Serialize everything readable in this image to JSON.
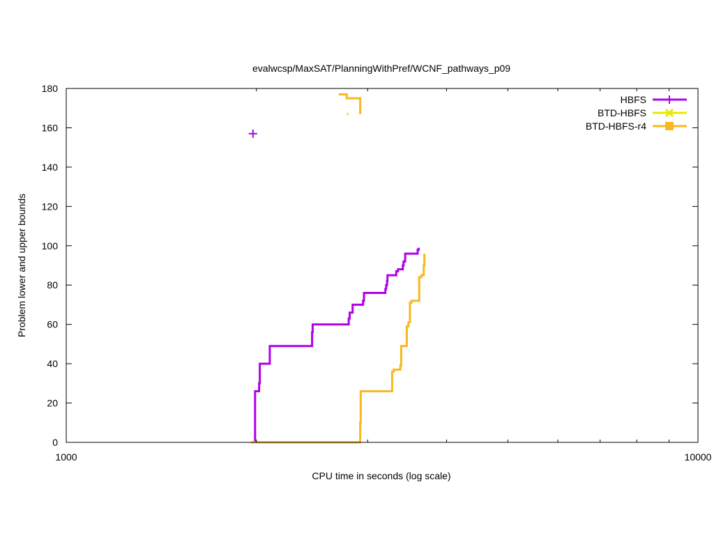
{
  "chart_data": {
    "type": "line",
    "title": "evalwcsp/MaxSAT/PlanningWithPref/WCNF_pathways_p09",
    "xlabel": "CPU time in seconds (log scale)",
    "ylabel": "Problem lower and upper bounds",
    "x_scale": "log",
    "xlim": [
      1000,
      10000
    ],
    "ylim": [
      0,
      180
    ],
    "x_ticks": [
      1000,
      10000
    ],
    "x_tick_labels": [
      "1000",
      "10000"
    ],
    "x_minor_ticks": [
      2000,
      3000,
      4000,
      5000,
      6000,
      7000,
      8000,
      9000
    ],
    "y_ticks": [
      0,
      20,
      40,
      60,
      80,
      100,
      120,
      140,
      160,
      180
    ],
    "y_tick_labels": [
      "0",
      "20",
      "40",
      "60",
      "80",
      "100",
      "120",
      "140",
      "160",
      "180"
    ],
    "grid": false,
    "legend_position": "top-right",
    "series": [
      {
        "name": "HBFS",
        "color": "#b000e8",
        "marker": "plus",
        "lower": [
          [
            1960,
            0
          ],
          [
            1990,
            0
          ],
          [
            1990,
            26
          ],
          [
            2020,
            26
          ],
          [
            2020,
            30
          ],
          [
            2025,
            30
          ],
          [
            2025,
            40
          ],
          [
            2100,
            40
          ],
          [
            2100,
            49
          ],
          [
            2450,
            49
          ],
          [
            2450,
            56
          ],
          [
            2455,
            56
          ],
          [
            2455,
            60
          ],
          [
            2800,
            60
          ],
          [
            2800,
            63
          ],
          [
            2810,
            63
          ],
          [
            2810,
            66
          ],
          [
            2840,
            66
          ],
          [
            2840,
            70
          ],
          [
            2950,
            70
          ],
          [
            2950,
            72
          ],
          [
            2960,
            72
          ],
          [
            2960,
            76
          ],
          [
            3200,
            76
          ],
          [
            3200,
            78
          ],
          [
            3210,
            78
          ],
          [
            3210,
            80
          ],
          [
            3220,
            80
          ],
          [
            3220,
            82
          ],
          [
            3225,
            82
          ],
          [
            3225,
            85
          ],
          [
            3330,
            85
          ],
          [
            3330,
            87
          ],
          [
            3350,
            87
          ],
          [
            3350,
            88
          ],
          [
            3410,
            88
          ],
          [
            3410,
            90
          ],
          [
            3420,
            90
          ],
          [
            3420,
            92
          ],
          [
            3440,
            92
          ],
          [
            3440,
            96
          ],
          [
            3600,
            96
          ],
          [
            3600,
            98
          ],
          [
            3615,
            98
          ],
          [
            3615,
            99
          ]
        ],
        "upper_points": [
          [
            1975,
            157
          ]
        ]
      },
      {
        "name": "BTD-HBFS",
        "color": "#e8e800",
        "marker": "x",
        "lower": [],
        "upper_points": []
      },
      {
        "name": "BTD-HBFS-r4",
        "color": "#f8b820",
        "marker": "square",
        "lower": [
          [
            1960,
            0
          ],
          [
            2920,
            0
          ],
          [
            2920,
            10
          ],
          [
            2925,
            10
          ],
          [
            2925,
            26
          ],
          [
            3280,
            26
          ],
          [
            3280,
            36
          ],
          [
            3300,
            36
          ],
          [
            3300,
            37
          ],
          [
            3380,
            37
          ],
          [
            3380,
            39
          ],
          [
            3390,
            39
          ],
          [
            3390,
            49
          ],
          [
            3460,
            49
          ],
          [
            3460,
            59
          ],
          [
            3480,
            59
          ],
          [
            3480,
            61
          ],
          [
            3500,
            61
          ],
          [
            3500,
            71
          ],
          [
            3520,
            71
          ],
          [
            3520,
            72
          ],
          [
            3620,
            72
          ],
          [
            3620,
            84
          ],
          [
            3650,
            84
          ],
          [
            3650,
            85
          ],
          [
            3680,
            85
          ],
          [
            3680,
            90
          ],
          [
            3690,
            90
          ],
          [
            3690,
            96
          ]
        ],
        "upper": [
          [
            2700,
            177
          ],
          [
            2780,
            177
          ],
          [
            2780,
            175
          ],
          [
            2920,
            175
          ],
          [
            2920,
            167
          ]
        ],
        "upper_points": [
          [
            2790,
            167
          ]
        ]
      }
    ]
  }
}
